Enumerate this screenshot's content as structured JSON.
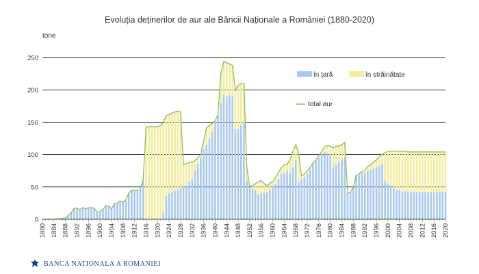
{
  "chart_data": {
    "type": "area",
    "title": "Evoluția deținerilor de aur ale Băncii Naționale a României (1880-2020)",
    "ylabel": "tone",
    "ylim": [
      0,
      250
    ],
    "yticks": [
      0,
      50,
      100,
      150,
      200,
      250
    ],
    "xlim": [
      1880,
      2020
    ],
    "xticks": [
      1880,
      1884,
      1888,
      1892,
      1896,
      1900,
      1904,
      1908,
      1912,
      1916,
      1920,
      1924,
      1928,
      1932,
      1936,
      1940,
      1944,
      1948,
      1952,
      1956,
      1960,
      1964,
      1968,
      1972,
      1976,
      1980,
      1984,
      1988,
      1992,
      1996,
      2000,
      2004,
      2008,
      2012,
      2016,
      2020
    ],
    "grid": true,
    "legend_position": "top-right",
    "colors": {
      "in_tara": "#a7c9ee",
      "in_strainatate": "#f2ec9c",
      "total": "#8cbf5a",
      "grid": "#222222"
    },
    "series": [
      {
        "name": "în țară",
        "values": [
          [
            1880,
            0
          ],
          [
            1884,
            0
          ],
          [
            1886,
            1
          ],
          [
            1888,
            2
          ],
          [
            1890,
            10
          ],
          [
            1891,
            17
          ],
          [
            1892,
            17
          ],
          [
            1893,
            15
          ],
          [
            1894,
            18
          ],
          [
            1895,
            16
          ],
          [
            1896,
            18
          ],
          [
            1897,
            18
          ],
          [
            1898,
            17
          ],
          [
            1899,
            11
          ],
          [
            1900,
            12
          ],
          [
            1901,
            15
          ],
          [
            1902,
            21
          ],
          [
            1903,
            20
          ],
          [
            1904,
            16
          ],
          [
            1905,
            24
          ],
          [
            1906,
            25
          ],
          [
            1907,
            28
          ],
          [
            1908,
            27
          ],
          [
            1909,
            30
          ],
          [
            1910,
            40
          ],
          [
            1911,
            45
          ],
          [
            1912,
            45
          ],
          [
            1913,
            45
          ],
          [
            1914,
            45
          ],
          [
            1915,
            62
          ],
          [
            1916,
            0
          ],
          [
            1917,
            0
          ],
          [
            1918,
            0
          ],
          [
            1919,
            0
          ],
          [
            1920,
            0
          ],
          [
            1921,
            0
          ],
          [
            1922,
            10
          ],
          [
            1923,
            36
          ],
          [
            1924,
            40
          ],
          [
            1925,
            42
          ],
          [
            1926,
            44
          ],
          [
            1927,
            46
          ],
          [
            1928,
            48
          ],
          [
            1929,
            50
          ],
          [
            1930,
            52
          ],
          [
            1931,
            58
          ],
          [
            1932,
            62
          ],
          [
            1933,
            75
          ],
          [
            1934,
            85
          ],
          [
            1935,
            95
          ],
          [
            1936,
            108
          ],
          [
            1937,
            115
          ],
          [
            1938,
            125
          ],
          [
            1939,
            135
          ],
          [
            1940,
            150
          ],
          [
            1941,
            160
          ],
          [
            1942,
            180
          ],
          [
            1943,
            192
          ],
          [
            1944,
            190
          ],
          [
            1945,
            192
          ],
          [
            1946,
            190
          ],
          [
            1947,
            140
          ],
          [
            1948,
            140
          ],
          [
            1949,
            145
          ],
          [
            1950,
            148
          ],
          [
            1951,
            60
          ],
          [
            1952,
            50
          ],
          [
            1953,
            48
          ],
          [
            1954,
            45
          ],
          [
            1955,
            38
          ],
          [
            1956,
            40
          ],
          [
            1957,
            40
          ],
          [
            1958,
            42
          ],
          [
            1959,
            45
          ],
          [
            1960,
            50
          ],
          [
            1961,
            55
          ],
          [
            1962,
            62
          ],
          [
            1963,
            70
          ],
          [
            1964,
            72
          ],
          [
            1965,
            75
          ],
          [
            1966,
            72
          ],
          [
            1967,
            80
          ],
          [
            1968,
            92
          ],
          [
            1969,
            58
          ],
          [
            1970,
            62
          ],
          [
            1971,
            65
          ],
          [
            1972,
            70
          ],
          [
            1973,
            78
          ],
          [
            1974,
            85
          ],
          [
            1975,
            90
          ],
          [
            1976,
            95
          ],
          [
            1977,
            100
          ],
          [
            1978,
            104
          ],
          [
            1979,
            102
          ],
          [
            1980,
            98
          ],
          [
            1981,
            80
          ],
          [
            1982,
            85
          ],
          [
            1983,
            88
          ],
          [
            1984,
            92
          ],
          [
            1985,
            95
          ],
          [
            1986,
            40
          ],
          [
            1987,
            42
          ],
          [
            1988,
            50
          ],
          [
            1989,
            68
          ],
          [
            1990,
            68
          ],
          [
            1991,
            72
          ],
          [
            1992,
            72
          ],
          [
            1993,
            74
          ],
          [
            1994,
            76
          ],
          [
            1995,
            78
          ],
          [
            1996,
            80
          ],
          [
            1997,
            82
          ],
          [
            1998,
            85
          ],
          [
            1999,
            60
          ],
          [
            2000,
            55
          ],
          [
            2001,
            52
          ],
          [
            2002,
            48
          ],
          [
            2003,
            45
          ],
          [
            2004,
            44
          ],
          [
            2005,
            43
          ],
          [
            2006,
            43
          ],
          [
            2007,
            42
          ],
          [
            2008,
            42
          ],
          [
            2009,
            42
          ],
          [
            2010,
            42
          ],
          [
            2011,
            42
          ],
          [
            2012,
            42
          ],
          [
            2013,
            42
          ],
          [
            2014,
            42
          ],
          [
            2015,
            42
          ],
          [
            2016,
            42
          ],
          [
            2017,
            42
          ],
          [
            2018,
            42
          ],
          [
            2019,
            42
          ],
          [
            2020,
            42
          ]
        ]
      },
      {
        "name": "în străinătate",
        "values": [
          [
            1880,
            0
          ],
          [
            1884,
            0
          ],
          [
            1886,
            0
          ],
          [
            1888,
            0
          ],
          [
            1890,
            0
          ],
          [
            1891,
            0
          ],
          [
            1892,
            0
          ],
          [
            1893,
            0
          ],
          [
            1894,
            0
          ],
          [
            1895,
            0
          ],
          [
            1896,
            0
          ],
          [
            1897,
            0
          ],
          [
            1898,
            0
          ],
          [
            1899,
            0
          ],
          [
            1900,
            0
          ],
          [
            1901,
            0
          ],
          [
            1902,
            0
          ],
          [
            1903,
            0
          ],
          [
            1904,
            0
          ],
          [
            1905,
            0
          ],
          [
            1906,
            0
          ],
          [
            1907,
            0
          ],
          [
            1908,
            0
          ],
          [
            1909,
            0
          ],
          [
            1910,
            0
          ],
          [
            1911,
            0
          ],
          [
            1912,
            0
          ],
          [
            1913,
            0
          ],
          [
            1914,
            0
          ],
          [
            1915,
            0
          ],
          [
            1916,
            143
          ],
          [
            1917,
            143
          ],
          [
            1918,
            143
          ],
          [
            1919,
            143
          ],
          [
            1920,
            143
          ],
          [
            1921,
            145
          ],
          [
            1922,
            140
          ],
          [
            1923,
            124
          ],
          [
            1924,
            122
          ],
          [
            1925,
            122
          ],
          [
            1926,
            122
          ],
          [
            1927,
            121
          ],
          [
            1928,
            118
          ],
          [
            1929,
            34
          ],
          [
            1930,
            34
          ],
          [
            1931,
            30
          ],
          [
            1932,
            26
          ],
          [
            1933,
            16
          ],
          [
            1934,
            10
          ],
          [
            1935,
            5
          ],
          [
            1936,
            13
          ],
          [
            1937,
            26
          ],
          [
            1938,
            20
          ],
          [
            1939,
            13
          ],
          [
            1940,
            2
          ],
          [
            1941,
            2
          ],
          [
            1942,
            46
          ],
          [
            1943,
            52
          ],
          [
            1944,
            52
          ],
          [
            1945,
            48
          ],
          [
            1946,
            48
          ],
          [
            1947,
            60
          ],
          [
            1948,
            67
          ],
          [
            1949,
            65
          ],
          [
            1950,
            62
          ],
          [
            1951,
            20
          ],
          [
            1952,
            0
          ],
          [
            1953,
            4
          ],
          [
            1954,
            10
          ],
          [
            1955,
            20
          ],
          [
            1956,
            20
          ],
          [
            1957,
            15
          ],
          [
            1958,
            10
          ],
          [
            1959,
            10
          ],
          [
            1960,
            8
          ],
          [
            1961,
            10
          ],
          [
            1962,
            10
          ],
          [
            1963,
            10
          ],
          [
            1964,
            12
          ],
          [
            1965,
            10
          ],
          [
            1966,
            20
          ],
          [
            1967,
            25
          ],
          [
            1968,
            23
          ],
          [
            1969,
            45
          ],
          [
            1970,
            5
          ],
          [
            1971,
            5
          ],
          [
            1972,
            5
          ],
          [
            1973,
            2
          ],
          [
            1974,
            2
          ],
          [
            1975,
            2
          ],
          [
            1976,
            3
          ],
          [
            1977,
            5
          ],
          [
            1978,
            8
          ],
          [
            1979,
            12
          ],
          [
            1980,
            15
          ],
          [
            1981,
            30
          ],
          [
            1982,
            28
          ],
          [
            1983,
            25
          ],
          [
            1984,
            23
          ],
          [
            1985,
            24
          ],
          [
            1986,
            0
          ],
          [
            1987,
            0
          ],
          [
            1988,
            0
          ],
          [
            1989,
            0
          ],
          [
            1990,
            2
          ],
          [
            1991,
            2
          ],
          [
            1992,
            3
          ],
          [
            1993,
            8
          ],
          [
            1994,
            8
          ],
          [
            1995,
            10
          ],
          [
            1996,
            12
          ],
          [
            1997,
            14
          ],
          [
            1998,
            16
          ],
          [
            1999,
            43
          ],
          [
            2000,
            50
          ],
          [
            2001,
            53
          ],
          [
            2002,
            57
          ],
          [
            2003,
            60
          ],
          [
            2004,
            61
          ],
          [
            2005,
            62
          ],
          [
            2006,
            62
          ],
          [
            2007,
            62
          ],
          [
            2008,
            62
          ],
          [
            2009,
            62
          ],
          [
            2010,
            62
          ],
          [
            2011,
            62
          ],
          [
            2012,
            62
          ],
          [
            2013,
            62
          ],
          [
            2014,
            62
          ],
          [
            2015,
            62
          ],
          [
            2016,
            62
          ],
          [
            2017,
            62
          ],
          [
            2018,
            62
          ],
          [
            2019,
            62
          ],
          [
            2020,
            62
          ]
        ]
      },
      {
        "name": "total aur",
        "note_values": "sum of în țară + în străinătate"
      }
    ]
  },
  "footer": {
    "institution": "BANCA NATIONALA A ROMANIEI",
    "logo_icon": "bnr-eagle-icon"
  }
}
